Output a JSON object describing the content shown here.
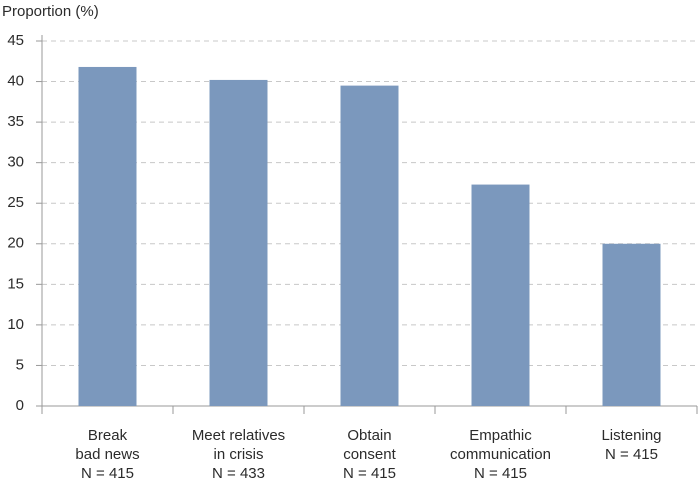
{
  "chart_data": {
    "type": "bar",
    "y_label": "Proportion (%)",
    "categories": [
      [
        "Break",
        "bad news",
        "N = 415"
      ],
      [
        "Meet relatives",
        "in crisis",
        "N = 433"
      ],
      [
        "Obtain",
        "consent",
        "N = 415"
      ],
      [
        "Empathic",
        "communication",
        "N = 415"
      ],
      [
        "Listening",
        "N = 415"
      ]
    ],
    "values": [
      41.8,
      40.2,
      39.5,
      27.3,
      20.0
    ],
    "color": "#7b98bd",
    "ylim": [
      0,
      45
    ],
    "yticks": [
      0,
      5,
      10,
      15,
      20,
      25,
      30,
      35,
      40,
      45
    ],
    "grid": true
  }
}
